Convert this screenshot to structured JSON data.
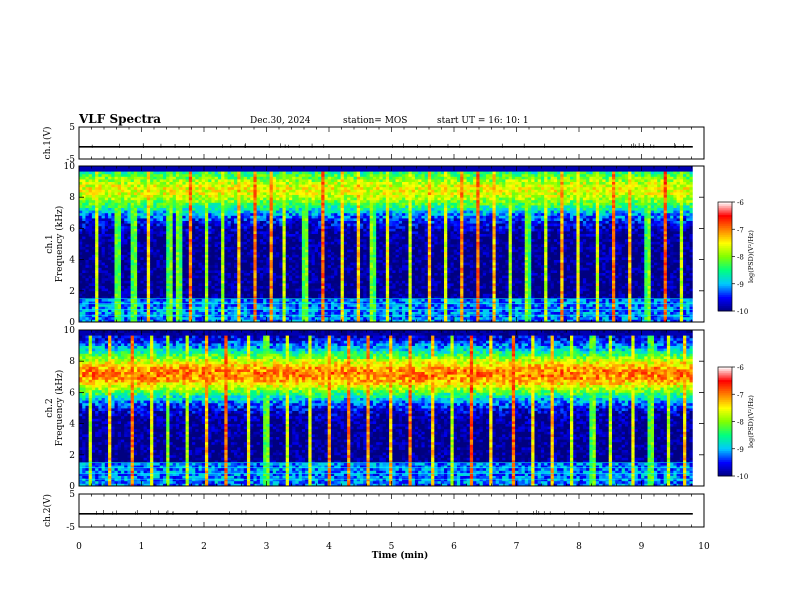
{
  "header": {
    "title": "VLF Spectra",
    "date": "Dec.30, 2024",
    "station": "station= MOS",
    "start_ut": "start  UT =   16: 10: 1"
  },
  "chart_data": [
    {
      "type": "line",
      "panel": "ch1-waveform",
      "ylabel": "ch.1(V)",
      "ylim": [
        -5,
        5
      ],
      "yticks": [
        "5",
        "-5"
      ],
      "x": [
        0,
        0.25,
        0.5,
        1,
        1.5,
        2,
        2.5,
        3,
        3.5,
        4,
        4.5,
        5,
        5.5,
        6,
        6.5,
        7,
        7.5,
        8,
        8.5,
        9,
        9.5,
        9.82
      ],
      "values": [
        -1.2,
        -1.2,
        -1.2,
        -1.2,
        -1.2,
        -1.2,
        -1.2,
        -1.2,
        -1.2,
        -1.2,
        -1.2,
        -1.2,
        -1.2,
        -1.2,
        -1.2,
        -1.2,
        -1.2,
        -1.2,
        -1.2,
        -1.2,
        -1.2,
        -1.2
      ],
      "color": "#000000"
    },
    {
      "type": "heatmap",
      "panel": "ch1-spectrogram",
      "ylabel": "ch.1\nFrequency (kHz)",
      "ylim": [
        0,
        10
      ],
      "yticks": [
        "0",
        "2",
        "4",
        "6",
        "8",
        "10"
      ],
      "time_range_min": [
        0,
        9.82
      ],
      "band_peak_khz": 8.5,
      "band_peak_log_psd": -7.6,
      "background_log_psd": -10,
      "spike_times_min": [
        0.3,
        0.62,
        0.88,
        1.1,
        1.45,
        1.6,
        1.78,
        2.02,
        2.28,
        2.55,
        2.82,
        3.08,
        3.3,
        3.62,
        3.9,
        4.2,
        4.48,
        4.7,
        4.95,
        5.28,
        5.6,
        5.85,
        6.12,
        6.38,
        6.65,
        6.92,
        7.18,
        7.45,
        7.72,
        8.0,
        8.28,
        8.55,
        8.82,
        9.1,
        9.38,
        9.62
      ],
      "colorbar": {
        "label": "log(PSD)(V²/Hz)",
        "range": [
          -10,
          -6
        ],
        "ticks": [
          "-6",
          "-7",
          "-8",
          "-9",
          "-10"
        ],
        "colors": [
          "#000080",
          "#0000ff",
          "#00c8ff",
          "#00ff80",
          "#80ff00",
          "#ffff00",
          "#ff8000",
          "#ff0000",
          "#ffffff"
        ]
      }
    },
    {
      "type": "heatmap",
      "panel": "ch2-spectrogram",
      "ylabel": "ch.2\nFrequency (kHz)",
      "ylim": [
        0,
        10
      ],
      "yticks": [
        "0",
        "2",
        "4",
        "6",
        "8",
        "10"
      ],
      "time_range_min": [
        0,
        9.82
      ],
      "band_peak_khz": 7.2,
      "band_peak_log_psd": -7.0,
      "background_log_psd": -10,
      "spike_times_min": [
        0.2,
        0.5,
        0.85,
        1.15,
        1.4,
        1.75,
        2.05,
        2.35,
        2.7,
        3.0,
        3.35,
        3.68,
        4.0,
        4.32,
        4.62,
        4.98,
        5.3,
        5.65,
        5.95,
        6.28,
        6.6,
        6.95,
        7.25,
        7.58,
        7.9,
        8.22,
        8.52,
        8.85,
        9.15,
        9.45,
        9.7
      ],
      "colorbar": {
        "label": "log(PSD)(V²/Hz)",
        "range": [
          -10,
          -6
        ],
        "ticks": [
          "-6",
          "-7",
          "-8",
          "-9",
          "-10"
        ],
        "colors": [
          "#000080",
          "#0000ff",
          "#00c8ff",
          "#00ff80",
          "#80ff00",
          "#ffff00",
          "#ff8000",
          "#ff0000",
          "#ffffff"
        ]
      }
    },
    {
      "type": "line",
      "panel": "ch2-waveform",
      "ylabel": "ch.2(V)",
      "ylim": [
        -5,
        5
      ],
      "yticks": [
        "5",
        "-5"
      ],
      "x": [
        0,
        0.5,
        1,
        1.5,
        2,
        2.5,
        3,
        3.5,
        4,
        4.5,
        5,
        5.5,
        6,
        6.5,
        7,
        7.5,
        8,
        8.5,
        9,
        9.5,
        9.82
      ],
      "values": [
        -1.0,
        -1.0,
        -1.0,
        -1.0,
        -1.0,
        -1.0,
        -1.0,
        -1.0,
        -1.0,
        -1.0,
        -1.0,
        -1.0,
        -1.0,
        -1.0,
        -1.0,
        -1.0,
        -1.0,
        -1.0,
        -1.0,
        -1.0,
        -1.0
      ],
      "color": "#000000"
    }
  ],
  "xaxis": {
    "label": "Time (min)",
    "range": [
      0,
      10
    ],
    "ticks": [
      "0",
      "1",
      "2",
      "3",
      "4",
      "5",
      "6",
      "7",
      "8",
      "9",
      "10"
    ]
  }
}
